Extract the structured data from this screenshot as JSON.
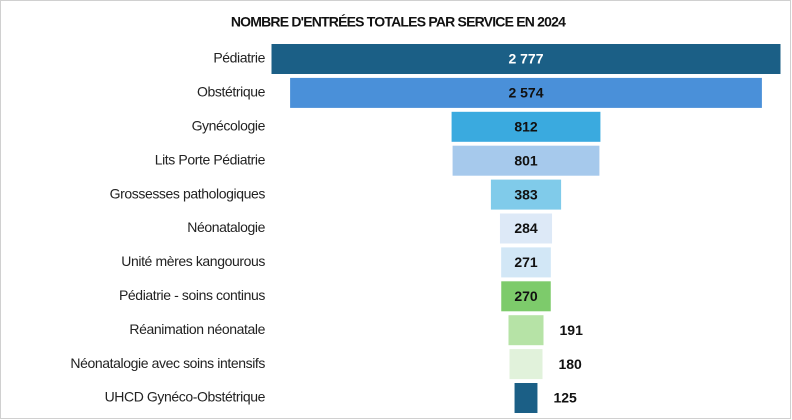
{
  "chart_data": {
    "type": "funnel",
    "title": "NOMBRE D'ENTRÉES TOTALES PAR SERVICE EN 2024",
    "categories": [
      "Pédiatrie",
      "Obstétrique",
      "Gynécologie",
      "Lits Porte Pédiatrie",
      "Grossesses pathologiques",
      "Néonatalogie",
      "Unité mères kangourous",
      "Pédiatrie - soins continus",
      "Réanimation néonatale",
      "Néonatalogie avec soins intensifs",
      "UHCD Gynéco-Obstétrique"
    ],
    "values": [
      2777,
      2574,
      812,
      801,
      383,
      284,
      271,
      270,
      191,
      180,
      125
    ],
    "value_labels": [
      "2 777",
      "2 574",
      "812",
      "801",
      "383",
      "284",
      "271",
      "270",
      "191",
      "180",
      "125"
    ],
    "colors": [
      "#1b5f86",
      "#4a90d9",
      "#3aaadf",
      "#a6c9ec",
      "#80cbea",
      "#dde9f7",
      "#d2e7f6",
      "#7dcb6b",
      "#b6e3a6",
      "#e1f2db",
      "#1b5f86"
    ]
  }
}
